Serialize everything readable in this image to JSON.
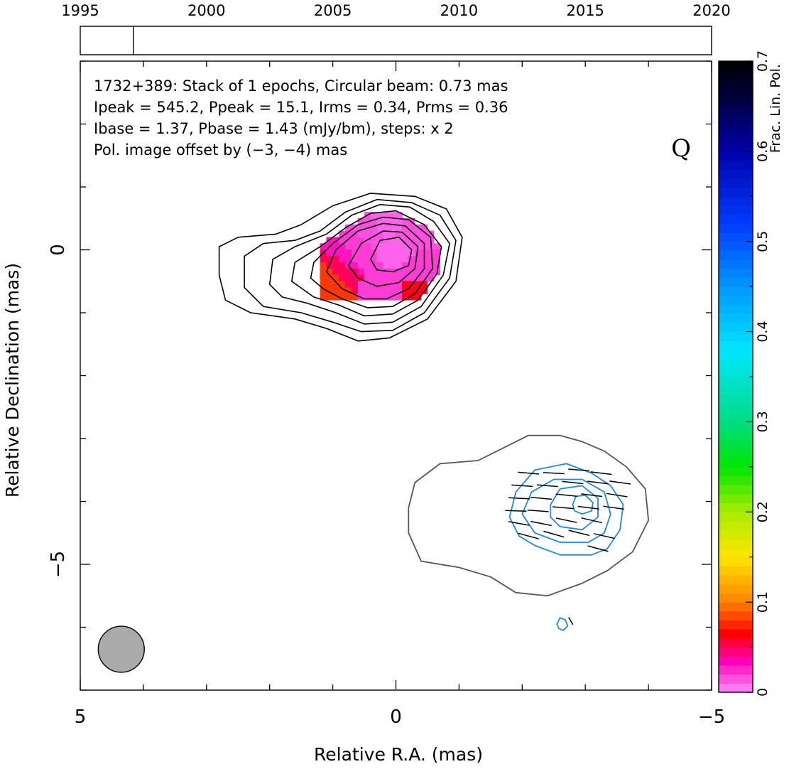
{
  "timeline": {
    "years": [
      "1995",
      "2000",
      "2005",
      "2010",
      "2015",
      "2020"
    ],
    "year_values": [
      1995,
      2000,
      2005,
      2010,
      2015,
      2020
    ],
    "range": [
      1995,
      2020
    ],
    "epoch_marks": [
      1997.1
    ]
  },
  "info": {
    "line1": "1732+389: Stack of 1 epochs, Circular beam: 0.73 mas",
    "line2": "Ipeak = 545.2, Ppeak = 15.1, Irms = 0.34, Prms = 0.36",
    "line3": "Ibase = 1.37, Pbase = 1.43 (mJy/bm), steps: x 2",
    "offset_note": "Pol. image offset by (−3, −4) mas",
    "offset_color": "#1e88e5",
    "band": "Q"
  },
  "chart_data": {
    "type": "heatmap",
    "title": "",
    "xlabel": "Relative R.A. (mas)",
    "ylabel": "Relative Declination (mas)",
    "xlim": [
      5,
      -5
    ],
    "ylim": [
      -7,
      3
    ],
    "x_ticks": [
      {
        "value": 5,
        "label": "5"
      },
      {
        "value": 0,
        "label": "0"
      },
      {
        "value": -5,
        "label": "−5"
      }
    ],
    "y_ticks": [
      {
        "value": 0,
        "label": "0"
      },
      {
        "value": -5,
        "label": "−5"
      }
    ],
    "beam": {
      "x": 4.35,
      "y": -6.35,
      "diameter": 0.73
    },
    "colorbar": {
      "label": "Frac. Lin. Pol.",
      "range": [
        0,
        0.7
      ],
      "ticks": [
        {
          "value": 0,
          "label": "0"
        },
        {
          "value": 0.1,
          "label": "0.1"
        },
        {
          "value": 0.2,
          "label": "0.2"
        },
        {
          "value": 0.3,
          "label": "0.3"
        },
        {
          "value": 0.4,
          "label": "0.4"
        },
        {
          "value": 0.5,
          "label": "0.5"
        },
        {
          "value": 0.6,
          "label": "0.6"
        },
        {
          "value": 0.7,
          "label": "0.7"
        }
      ]
    },
    "stokes_i_contours": [
      {
        "level": 1.37,
        "points": [
          [
            2.8,
            -0.4
          ],
          [
            2.8,
            0.05
          ],
          [
            2.5,
            0.2
          ],
          [
            1.9,
            0.25
          ],
          [
            1.5,
            0.4
          ],
          [
            1.0,
            0.7
          ],
          [
            0.4,
            0.9
          ],
          [
            -0.3,
            0.85
          ],
          [
            -0.8,
            0.65
          ],
          [
            -1.05,
            0.2
          ],
          [
            -0.95,
            -0.5
          ],
          [
            -0.5,
            -1.1
          ],
          [
            0.1,
            -1.4
          ],
          [
            0.6,
            -1.45
          ],
          [
            1.1,
            -1.25
          ],
          [
            1.6,
            -1.1
          ],
          [
            2.3,
            -1.0
          ],
          [
            2.7,
            -0.8
          ]
        ]
      },
      {
        "level": 2.74,
        "points": [
          [
            2.4,
            -0.6
          ],
          [
            2.4,
            -0.1
          ],
          [
            2.1,
            0.1
          ],
          [
            1.6,
            0.15
          ],
          [
            1.2,
            0.3
          ],
          [
            0.8,
            0.6
          ],
          [
            0.3,
            0.8
          ],
          [
            -0.25,
            0.75
          ],
          [
            -0.7,
            0.55
          ],
          [
            -0.95,
            0.15
          ],
          [
            -0.85,
            -0.45
          ],
          [
            -0.45,
            -1.0
          ],
          [
            0.05,
            -1.28
          ],
          [
            0.55,
            -1.3
          ],
          [
            1.0,
            -1.15
          ],
          [
            1.5,
            -1.0
          ],
          [
            2.1,
            -0.9
          ]
        ]
      },
      {
        "level": 5.48,
        "points": [
          [
            2.0,
            -0.55
          ],
          [
            1.95,
            -0.15
          ],
          [
            1.6,
            0.05
          ],
          [
            1.1,
            0.25
          ],
          [
            0.7,
            0.55
          ],
          [
            0.25,
            0.72
          ],
          [
            -0.22,
            0.68
          ],
          [
            -0.6,
            0.45
          ],
          [
            -0.85,
            0.1
          ],
          [
            -0.75,
            -0.4
          ],
          [
            -0.4,
            -0.9
          ],
          [
            0.05,
            -1.15
          ],
          [
            0.5,
            -1.18
          ],
          [
            0.95,
            -1.0
          ],
          [
            1.4,
            -0.85
          ],
          [
            1.8,
            -0.75
          ]
        ]
      },
      {
        "level": 10.96,
        "points": [
          [
            1.65,
            -0.5
          ],
          [
            1.6,
            -0.2
          ],
          [
            1.2,
            0.05
          ],
          [
            0.8,
            0.35
          ],
          [
            0.4,
            0.58
          ],
          [
            0.0,
            0.62
          ],
          [
            -0.45,
            0.4
          ],
          [
            -0.72,
            0.05
          ],
          [
            -0.65,
            -0.38
          ],
          [
            -0.35,
            -0.8
          ],
          [
            0.05,
            -1.02
          ],
          [
            0.5,
            -1.05
          ],
          [
            0.9,
            -0.88
          ],
          [
            1.3,
            -0.75
          ]
        ]
      },
      {
        "level": 21.92,
        "points": [
          [
            1.35,
            -0.45
          ],
          [
            1.3,
            -0.2
          ],
          [
            1.0,
            0.1
          ],
          [
            0.6,
            0.4
          ],
          [
            0.2,
            0.52
          ],
          [
            -0.2,
            0.48
          ],
          [
            -0.55,
            0.2
          ],
          [
            -0.58,
            -0.3
          ],
          [
            -0.3,
            -0.7
          ],
          [
            0.05,
            -0.9
          ],
          [
            0.45,
            -0.92
          ],
          [
            0.85,
            -0.78
          ],
          [
            1.15,
            -0.62
          ]
        ]
      },
      {
        "level": 43.84,
        "points": [
          [
            1.1,
            -0.35
          ],
          [
            0.95,
            0.0
          ],
          [
            0.6,
            0.3
          ],
          [
            0.2,
            0.42
          ],
          [
            -0.15,
            0.38
          ],
          [
            -0.45,
            0.1
          ],
          [
            -0.45,
            -0.3
          ],
          [
            -0.2,
            -0.62
          ],
          [
            0.15,
            -0.78
          ],
          [
            0.5,
            -0.78
          ],
          [
            0.85,
            -0.62
          ]
        ]
      },
      {
        "level": 87.68,
        "points": [
          [
            0.75,
            -0.25
          ],
          [
            0.55,
            0.1
          ],
          [
            0.2,
            0.3
          ],
          [
            -0.1,
            0.28
          ],
          [
            -0.35,
            0.05
          ],
          [
            -0.3,
            -0.3
          ],
          [
            -0.05,
            -0.52
          ],
          [
            0.3,
            -0.58
          ],
          [
            0.6,
            -0.45
          ]
        ]
      },
      {
        "level": 175.36,
        "points": [
          [
            0.4,
            -0.15
          ],
          [
            0.25,
            0.15
          ],
          [
            -0.05,
            0.2
          ],
          [
            -0.25,
            0.0
          ],
          [
            -0.2,
            -0.25
          ],
          [
            0.05,
            -0.35
          ],
          [
            0.3,
            -0.32
          ]
        ]
      }
    ],
    "fpol_pixels": [
      {
        "x": 1.05,
        "y": -0.35,
        "fpol": 0.08
      },
      {
        "x": 0.95,
        "y": -0.25,
        "fpol": 0.05
      },
      {
        "x": 0.85,
        "y": -0.1,
        "fpol": 0.03
      },
      {
        "x": 0.65,
        "y": 0.05,
        "fpol": 0.02
      },
      {
        "x": 0.45,
        "y": 0.3,
        "fpol": 0.015
      },
      {
        "x": 0.15,
        "y": 0.5,
        "fpol": 0.01
      },
      {
        "x": 0.0,
        "y": 0.0,
        "fpol": 0.01
      },
      {
        "x": -0.3,
        "y": 0.3,
        "fpol": 0.015
      },
      {
        "x": -0.4,
        "y": -0.35,
        "fpol": 0.02
      },
      {
        "x": -0.35,
        "y": -0.65,
        "fpol": 0.06
      },
      {
        "x": 0.1,
        "y": -0.55,
        "fpol": 0.02
      }
    ],
    "stokes_i_offset_contour": {
      "level": 1.37,
      "points": [
        [
          -0.2,
          -4.1
        ],
        [
          -0.3,
          -3.7
        ],
        [
          -0.7,
          -3.4
        ],
        [
          -1.3,
          -3.35
        ],
        [
          -1.7,
          -3.15
        ],
        [
          -2.1,
          -2.95
        ],
        [
          -2.6,
          -2.95
        ],
        [
          -2.95,
          -3.05
        ],
        [
          -3.3,
          -3.2
        ],
        [
          -3.65,
          -3.45
        ],
        [
          -3.95,
          -3.8
        ],
        [
          -4.0,
          -4.3
        ],
        [
          -3.75,
          -4.8
        ],
        [
          -3.35,
          -5.1
        ],
        [
          -2.95,
          -5.3
        ],
        [
          -2.4,
          -5.5
        ],
        [
          -1.9,
          -5.45
        ],
        [
          -1.5,
          -5.2
        ],
        [
          -1.0,
          -5.05
        ],
        [
          -0.4,
          -4.95
        ],
        [
          -0.2,
          -4.5
        ]
      ]
    },
    "pol_contours": [
      {
        "level": 1.43,
        "points": [
          [
            -1.8,
            -4.25
          ],
          [
            -1.9,
            -3.85
          ],
          [
            -2.2,
            -3.5
          ],
          [
            -2.7,
            -3.4
          ],
          [
            -3.1,
            -3.55
          ],
          [
            -3.4,
            -3.75
          ],
          [
            -3.6,
            -4.05
          ],
          [
            -3.55,
            -4.45
          ],
          [
            -3.35,
            -4.75
          ],
          [
            -3.1,
            -4.85
          ],
          [
            -2.6,
            -4.85
          ],
          [
            -2.2,
            -4.7
          ],
          [
            -1.95,
            -4.55
          ]
        ]
      },
      {
        "level": 2.86,
        "points": [
          [
            -2.0,
            -4.2
          ],
          [
            -2.15,
            -3.85
          ],
          [
            -2.5,
            -3.65
          ],
          [
            -2.95,
            -3.65
          ],
          [
            -3.3,
            -3.85
          ],
          [
            -3.4,
            -4.2
          ],
          [
            -3.3,
            -4.5
          ],
          [
            -3.05,
            -4.65
          ],
          [
            -2.6,
            -4.65
          ],
          [
            -2.2,
            -4.5
          ]
        ]
      },
      {
        "level": 5.72,
        "points": [
          [
            -2.45,
            -4.05
          ],
          [
            -2.6,
            -3.8
          ],
          [
            -2.95,
            -3.75
          ],
          [
            -3.2,
            -3.95
          ],
          [
            -3.2,
            -4.25
          ],
          [
            -2.95,
            -4.45
          ],
          [
            -2.6,
            -4.4
          ],
          [
            -2.45,
            -4.25
          ]
        ]
      },
      {
        "level": 11.44,
        "points": [
          [
            -2.8,
            -4.05
          ],
          [
            -2.85,
            -3.92
          ],
          [
            -3.0,
            -3.9
          ],
          [
            -3.12,
            -4.02
          ],
          [
            -3.1,
            -4.15
          ],
          [
            -2.95,
            -4.2
          ],
          [
            -2.83,
            -4.15
          ]
        ]
      }
    ],
    "pol_islands": [
      {
        "level": 1.43,
        "points": [
          [
            -2.55,
            -5.95
          ],
          [
            -2.6,
            -5.85
          ],
          [
            -2.68,
            -5.88
          ],
          [
            -2.72,
            -5.98
          ],
          [
            -2.65,
            -6.05
          ],
          [
            -2.58,
            -6.02
          ]
        ]
      }
    ],
    "evpa_vectors": [
      {
        "x": -2.1,
        "y": -3.55,
        "angle_deg": 95
      },
      {
        "x": -2.5,
        "y": -3.55,
        "angle_deg": 93
      },
      {
        "x": -2.9,
        "y": -3.5,
        "angle_deg": 95
      },
      {
        "x": -3.25,
        "y": -3.55,
        "angle_deg": 97
      },
      {
        "x": -2.0,
        "y": -3.75,
        "angle_deg": 94
      },
      {
        "x": -2.4,
        "y": -3.75,
        "angle_deg": 95
      },
      {
        "x": -2.8,
        "y": -3.7,
        "angle_deg": 96
      },
      {
        "x": -3.2,
        "y": -3.7,
        "angle_deg": 97
      },
      {
        "x": -3.55,
        "y": -3.7,
        "angle_deg": 98
      },
      {
        "x": -1.95,
        "y": -3.95,
        "angle_deg": 93
      },
      {
        "x": -2.3,
        "y": -3.95,
        "angle_deg": 95
      },
      {
        "x": -2.7,
        "y": -3.9,
        "angle_deg": 96
      },
      {
        "x": -3.1,
        "y": -3.9,
        "angle_deg": 97
      },
      {
        "x": -3.5,
        "y": -3.9,
        "angle_deg": 99
      },
      {
        "x": -1.9,
        "y": -4.15,
        "angle_deg": 92
      },
      {
        "x": -2.25,
        "y": -4.15,
        "angle_deg": 94
      },
      {
        "x": -2.65,
        "y": -4.1,
        "angle_deg": 95
      },
      {
        "x": -3.05,
        "y": -4.1,
        "angle_deg": 97
      },
      {
        "x": -3.45,
        "y": -4.1,
        "angle_deg": 98
      },
      {
        "x": -1.95,
        "y": -4.35,
        "angle_deg": 100
      },
      {
        "x": -2.3,
        "y": -4.35,
        "angle_deg": 101
      },
      {
        "x": -2.7,
        "y": -4.3,
        "angle_deg": 102
      },
      {
        "x": -3.1,
        "y": -4.3,
        "angle_deg": 103
      },
      {
        "x": -2.1,
        "y": -4.55,
        "angle_deg": 105
      },
      {
        "x": -2.5,
        "y": -4.52,
        "angle_deg": 106
      },
      {
        "x": -2.9,
        "y": -4.5,
        "angle_deg": 104
      },
      {
        "x": -3.3,
        "y": -4.55,
        "angle_deg": 103
      },
      {
        "x": -3.2,
        "y": -4.75,
        "angle_deg": 105
      }
    ],
    "evpa_isolated": [
      {
        "x": -2.77,
        "y": -5.9,
        "angle_deg": 150
      }
    ]
  }
}
